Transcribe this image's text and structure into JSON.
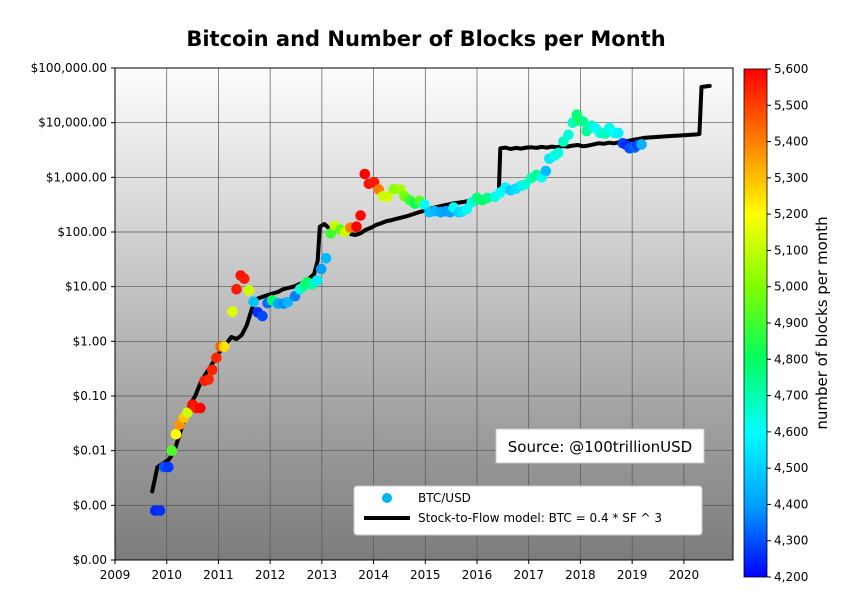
{
  "chart_data": {
    "type": "scatter",
    "title": "Bitcoin and Number of Blocks per Month",
    "xlabel": "",
    "ylabel": "",
    "y_scale": "log",
    "x_ticks": [
      "2009",
      "2010",
      "2011",
      "2012",
      "2013",
      "2014",
      "2015",
      "2016",
      "2017",
      "2018",
      "2019",
      "2020"
    ],
    "y_ticks": [
      "$0.00",
      "$0.00",
      "$0.01",
      "$0.10",
      "$1.00",
      "$10.00",
      "$100.00",
      "$1,000.00",
      "$10,000.00",
      "$100,000.00"
    ],
    "colorbar": {
      "label": "number of blocks per month",
      "ticks": [
        "4,200",
        "4,300",
        "4,400",
        "4,500",
        "4,600",
        "4,700",
        "4,800",
        "4,900",
        "5,000",
        "5,100",
        "5,200",
        "5,300",
        "5,400",
        "5,500",
        "5,600"
      ],
      "range": [
        4200,
        5600
      ],
      "colors": [
        "#0000ff",
        "#00a0ff",
        "#00ffff",
        "#00ff60",
        "#80ff00",
        "#ffff00",
        "#ff8000",
        "#ff0000"
      ]
    },
    "legend": {
      "placement": "lower-right",
      "entries": [
        "BTC/USD",
        "Stock-to-Flow model: BTC = 0.4 * SF ^ 3"
      ]
    },
    "annotation": "Source: @100trillionUSD",
    "grid": true,
    "series": [
      {
        "name": "BTC/USD",
        "marker": "circle",
        "points": [
          [
            2009.78,
            0.0008,
            4250
          ],
          [
            2009.87,
            0.0008,
            4260
          ],
          [
            2009.95,
            0.005,
            4300
          ],
          [
            2010.03,
            0.005,
            4270
          ],
          [
            2010.1,
            0.01,
            4920
          ],
          [
            2010.18,
            0.02,
            5200
          ],
          [
            2010.25,
            0.03,
            5370
          ],
          [
            2010.33,
            0.04,
            5290
          ],
          [
            2010.4,
            0.05,
            5120
          ],
          [
            2010.5,
            0.07,
            5580
          ],
          [
            2010.57,
            0.06,
            5560
          ],
          [
            2010.65,
            0.06,
            5600
          ],
          [
            2010.73,
            0.19,
            5560
          ],
          [
            2010.81,
            0.2,
            5540
          ],
          [
            2010.88,
            0.3,
            5550
          ],
          [
            2010.96,
            0.5,
            5540
          ],
          [
            2011.04,
            0.8,
            5450
          ],
          [
            2011.11,
            0.8,
            5250
          ],
          [
            2011.27,
            3.5,
            5150
          ],
          [
            2011.35,
            9,
            5560
          ],
          [
            2011.43,
            16,
            5570
          ],
          [
            2011.5,
            14,
            5560
          ],
          [
            2011.59,
            8.5,
            5120
          ],
          [
            2011.68,
            5.3,
            4480
          ],
          [
            2011.76,
            3.4,
            4260
          ],
          [
            2011.85,
            2.9,
            4290
          ],
          [
            2011.95,
            5,
            4330
          ],
          [
            2012.04,
            5.6,
            4780
          ],
          [
            2012.15,
            4.9,
            4420
          ],
          [
            2012.26,
            4.9,
            4380
          ],
          [
            2012.34,
            5.2,
            4450
          ],
          [
            2012.48,
            6.7,
            4360
          ],
          [
            2012.58,
            9,
            4650
          ],
          [
            2012.66,
            10.5,
            4750
          ],
          [
            2012.72,
            12,
            4800
          ],
          [
            2012.81,
            11,
            4720
          ],
          [
            2012.91,
            13,
            4560
          ],
          [
            2012.99,
            21,
            4400
          ],
          [
            2013.08,
            33,
            4450
          ],
          [
            2013.17,
            94,
            4900
          ],
          [
            2013.25,
            130,
            5100
          ],
          [
            2013.36,
            110,
            4950
          ],
          [
            2013.45,
            100,
            5120
          ],
          [
            2013.55,
            120,
            5400
          ],
          [
            2013.67,
            125,
            5600
          ],
          [
            2013.75,
            200,
            5590
          ],
          [
            2013.83,
            1150,
            5600
          ],
          [
            2013.91,
            760,
            5570
          ],
          [
            2014.01,
            810,
            5560
          ],
          [
            2014.1,
            600,
            5410
          ],
          [
            2014.18,
            450,
            5110
          ],
          [
            2014.27,
            440,
            5120
          ],
          [
            2014.39,
            610,
            5020
          ],
          [
            2014.52,
            600,
            5050
          ],
          [
            2014.6,
            450,
            4980
          ],
          [
            2014.7,
            380,
            4890
          ],
          [
            2014.8,
            330,
            4810
          ],
          [
            2014.89,
            370,
            4950
          ],
          [
            2014.98,
            320,
            4600
          ],
          [
            2015.08,
            230,
            4480
          ],
          [
            2015.18,
            240,
            4450
          ],
          [
            2015.3,
            230,
            4420
          ],
          [
            2015.4,
            240,
            4400
          ],
          [
            2015.48,
            230,
            4410
          ],
          [
            2015.55,
            280,
            4600
          ],
          [
            2015.65,
            230,
            4500
          ],
          [
            2015.7,
            235,
            4540
          ],
          [
            2015.8,
            260,
            4600
          ],
          [
            2015.9,
            350,
            4640
          ],
          [
            2016.0,
            420,
            4770
          ],
          [
            2016.1,
            380,
            4800
          ],
          [
            2016.2,
            420,
            4750
          ],
          [
            2016.35,
            440,
            4640
          ],
          [
            2016.45,
            530,
            4600
          ],
          [
            2016.55,
            650,
            4580
          ],
          [
            2016.65,
            580,
            4500
          ],
          [
            2016.75,
            620,
            4530
          ],
          [
            2016.85,
            700,
            4560
          ],
          [
            2016.93,
            740,
            4650
          ],
          [
            2017.05,
            970,
            4700
          ],
          [
            2017.15,
            1100,
            4750
          ],
          [
            2017.25,
            1000,
            4620
          ],
          [
            2017.33,
            1300,
            4460
          ],
          [
            2017.4,
            2200,
            4550
          ],
          [
            2017.5,
            2500,
            4620
          ],
          [
            2017.57,
            2800,
            4640
          ],
          [
            2017.67,
            4500,
            4680
          ],
          [
            2017.77,
            6000,
            4650
          ],
          [
            2017.85,
            10000,
            4680
          ],
          [
            2017.93,
            14000,
            4760
          ],
          [
            2017.98,
            11000,
            4840
          ],
          [
            2018.05,
            10500,
            4740
          ],
          [
            2018.12,
            7000,
            4730
          ],
          [
            2018.22,
            8800,
            4660
          ],
          [
            2018.3,
            7800,
            4600
          ],
          [
            2018.38,
            6500,
            4640
          ],
          [
            2018.48,
            6300,
            4680
          ],
          [
            2018.56,
            8000,
            4630
          ],
          [
            2018.66,
            6500,
            4600
          ],
          [
            2018.73,
            6500,
            4570
          ],
          [
            2018.82,
            4200,
            4280
          ],
          [
            2018.89,
            3900,
            4250
          ],
          [
            2018.95,
            3400,
            4300
          ],
          [
            2019.05,
            3500,
            4330
          ],
          [
            2019.1,
            3900,
            4280
          ],
          [
            2019.18,
            4000,
            4440
          ]
        ]
      },
      {
        "name": "Stock-to-Flow model: BTC = 0.4 * SF ^ 3",
        "marker": "line",
        "points": [
          [
            2009.72,
            0.0018
          ],
          [
            2009.82,
            0.005
          ],
          [
            2009.95,
            0.006
          ],
          [
            2010.05,
            0.007
          ],
          [
            2010.15,
            0.01
          ],
          [
            2010.25,
            0.02
          ],
          [
            2010.35,
            0.04
          ],
          [
            2010.45,
            0.07
          ],
          [
            2010.55,
            0.1
          ],
          [
            2010.65,
            0.17
          ],
          [
            2010.75,
            0.25
          ],
          [
            2010.85,
            0.35
          ],
          [
            2010.95,
            0.5
          ],
          [
            2011.05,
            0.7
          ],
          [
            2011.15,
            0.9
          ],
          [
            2011.25,
            1.2
          ],
          [
            2011.35,
            1.1
          ],
          [
            2011.45,
            1.3
          ],
          [
            2011.55,
            2
          ],
          [
            2011.65,
            4
          ],
          [
            2011.75,
            6
          ],
          [
            2011.85,
            6.5
          ],
          [
            2011.95,
            7
          ],
          [
            2012.05,
            7.5
          ],
          [
            2012.15,
            8
          ],
          [
            2012.25,
            9
          ],
          [
            2012.35,
            9.5
          ],
          [
            2012.45,
            10
          ],
          [
            2012.55,
            11
          ],
          [
            2012.65,
            12
          ],
          [
            2012.75,
            14
          ],
          [
            2012.85,
            17
          ],
          [
            2012.92,
            30
          ],
          [
            2012.96,
            125
          ],
          [
            2013.05,
            140
          ],
          [
            2013.15,
            115
          ],
          [
            2013.25,
            108
          ],
          [
            2013.35,
            102
          ],
          [
            2013.45,
            98
          ],
          [
            2013.55,
            92
          ],
          [
            2013.65,
            88
          ],
          [
            2013.75,
            95
          ],
          [
            2013.85,
            110
          ],
          [
            2013.95,
            120
          ],
          [
            2014.05,
            135
          ],
          [
            2014.15,
            145
          ],
          [
            2014.25,
            158
          ],
          [
            2014.35,
            165
          ],
          [
            2014.45,
            175
          ],
          [
            2014.55,
            185
          ],
          [
            2014.65,
            195
          ],
          [
            2014.75,
            210
          ],
          [
            2014.85,
            225
          ],
          [
            2014.95,
            240
          ],
          [
            2015.05,
            260
          ],
          [
            2015.15,
            275
          ],
          [
            2015.25,
            290
          ],
          [
            2015.35,
            305
          ],
          [
            2015.45,
            320
          ],
          [
            2015.55,
            335
          ],
          [
            2015.65,
            345
          ],
          [
            2015.75,
            355
          ],
          [
            2015.85,
            370
          ],
          [
            2015.95,
            390
          ],
          [
            2016.05,
            400
          ],
          [
            2016.15,
            420
          ],
          [
            2016.25,
            430
          ],
          [
            2016.35,
            440
          ],
          [
            2016.42,
            450
          ],
          [
            2016.45,
            3400
          ],
          [
            2016.55,
            3500
          ],
          [
            2016.65,
            3300
          ],
          [
            2016.75,
            3450
          ],
          [
            2016.85,
            3350
          ],
          [
            2016.95,
            3500
          ],
          [
            2017.05,
            3550
          ],
          [
            2017.15,
            3450
          ],
          [
            2017.25,
            3600
          ],
          [
            2017.35,
            3500
          ],
          [
            2017.45,
            3650
          ],
          [
            2017.55,
            3550
          ],
          [
            2017.65,
            3750
          ],
          [
            2017.75,
            3650
          ],
          [
            2017.85,
            3800
          ],
          [
            2017.95,
            3900
          ],
          [
            2018.05,
            3700
          ],
          [
            2018.15,
            3800
          ],
          [
            2018.25,
            4000
          ],
          [
            2018.35,
            4200
          ],
          [
            2018.45,
            4100
          ],
          [
            2018.55,
            4300
          ],
          [
            2018.65,
            4200
          ],
          [
            2018.75,
            4400
          ],
          [
            2018.85,
            4500
          ],
          [
            2018.95,
            4700
          ],
          [
            2019.05,
            4900
          ],
          [
            2019.15,
            5100
          ],
          [
            2019.25,
            5300
          ],
          [
            2019.5,
            5500
          ],
          [
            2019.75,
            5700
          ],
          [
            2020.0,
            5900
          ],
          [
            2020.25,
            6100
          ],
          [
            2020.3,
            6200
          ],
          [
            2020.34,
            45000
          ],
          [
            2020.5,
            47000
          ]
        ]
      }
    ]
  }
}
